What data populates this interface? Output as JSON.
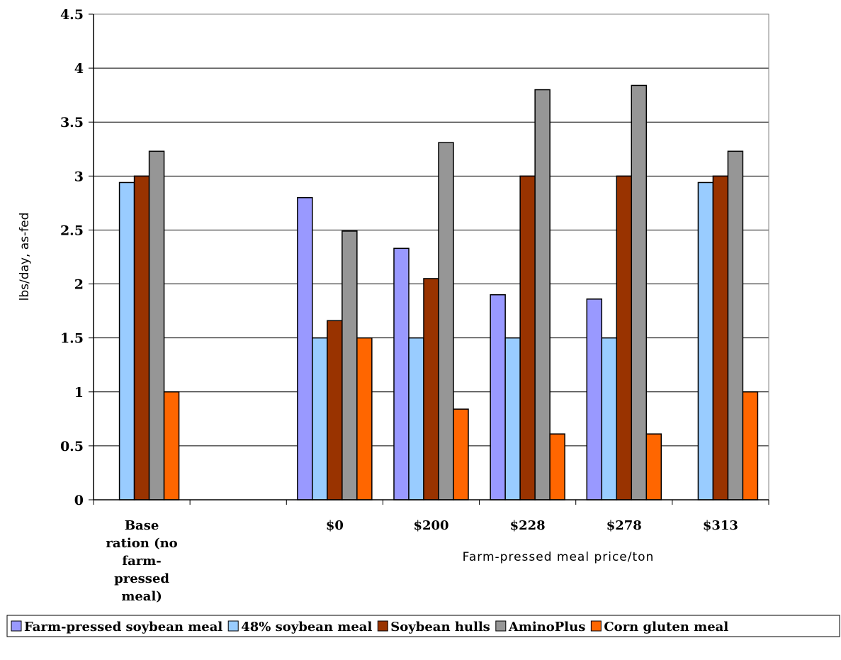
{
  "chart_data": {
    "type": "bar",
    "categories": [
      "Base ration (no farm-pressed meal)",
      "",
      "$0",
      "$200",
      "$228",
      "$278",
      "$313"
    ],
    "category_label_lines": [
      [
        "Base",
        "ration (no",
        "farm-",
        "pressed",
        "meal)"
      ],
      [],
      [
        "$0"
      ],
      [
        "$200"
      ],
      [
        "$228"
      ],
      [
        "$278"
      ],
      [
        "$313"
      ]
    ],
    "series": [
      {
        "name": "Farm-pressed soybean meal",
        "color": "#9999ff",
        "values": [
          null,
          null,
          2.8,
          2.33,
          1.9,
          1.86,
          null
        ]
      },
      {
        "name": "48% soybean meal",
        "color": "#99ccff",
        "values": [
          2.94,
          null,
          1.5,
          1.5,
          1.5,
          1.5,
          2.94
        ]
      },
      {
        "name": "Soybean hulls",
        "color": "#993300",
        "values": [
          3.0,
          null,
          1.66,
          2.05,
          3.0,
          3.0,
          3.0
        ]
      },
      {
        "name": "AminoPlus",
        "color": "#969696",
        "values": [
          3.23,
          null,
          2.49,
          3.31,
          3.8,
          3.84,
          3.23
        ]
      },
      {
        "name": "Corn gluten meal",
        "color": "#ff6600",
        "values": [
          1.0,
          null,
          1.5,
          0.84,
          0.61,
          0.61,
          1.0
        ]
      }
    ],
    "ylim": [
      0,
      4.5
    ],
    "yticks": [
      "0",
      "0.5",
      "1",
      "1.5",
      "2",
      "2.5",
      "3",
      "3.5",
      "4",
      "4.5"
    ],
    "ylabel": "lbs/day, as-fed",
    "xlabel": "Farm-pressed meal price/ton",
    "grid": true,
    "legend_position": "bottom"
  }
}
